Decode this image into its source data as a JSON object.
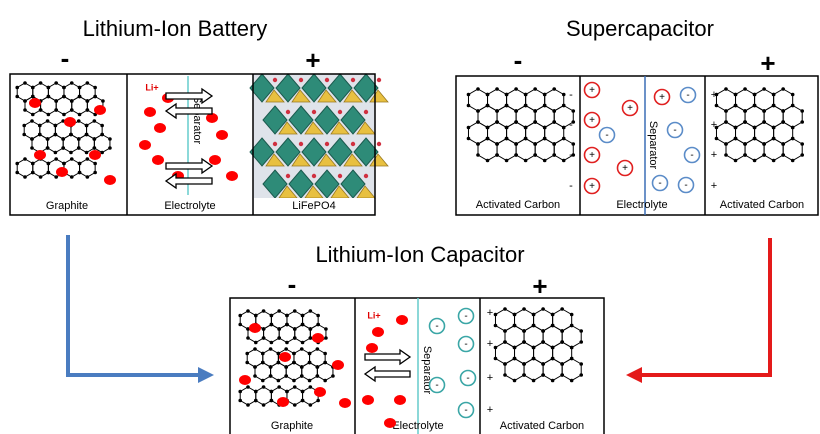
{
  "battery": {
    "title": "Lithium-Ion Battery",
    "negative": "-",
    "positive": "+",
    "ion": "Li+",
    "separator": "Separator",
    "anode": "Graphite",
    "electrolyte": "Electrolyte",
    "cathode": "LiFePO4"
  },
  "supercapacitor": {
    "title": "Supercapacitor",
    "negative": "-",
    "positive": "+",
    "cation_sign": "+",
    "anion_sign": "-",
    "separator": "Separator",
    "anode": "Activated Carbon",
    "electrolyte": "Electrolyte",
    "cathode": "Activated Carbon"
  },
  "capacitor": {
    "title": "Lithium-Ion Capacitor",
    "negative": "-",
    "positive": "+",
    "ion": "Li+",
    "anion_sign": "-",
    "separator": "Separator",
    "anode": "Graphite",
    "electrolyte": "Electrolyte",
    "cathode": "Activated Carbon"
  }
}
